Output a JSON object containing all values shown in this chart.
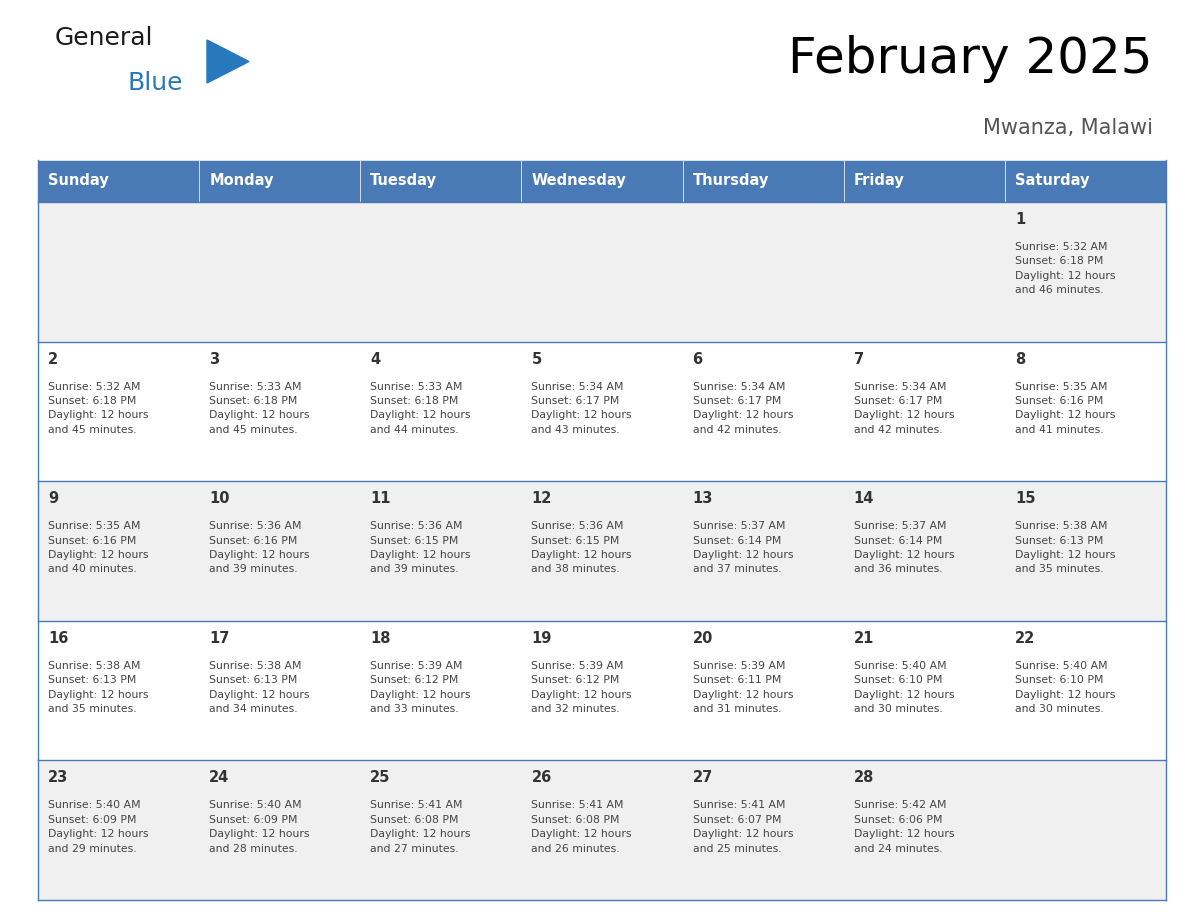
{
  "title": "February 2025",
  "subtitle": "Mwanza, Malawi",
  "days_of_week": [
    "Sunday",
    "Monday",
    "Tuesday",
    "Wednesday",
    "Thursday",
    "Friday",
    "Saturday"
  ],
  "header_bg": "#4a7ab5",
  "header_text": "#ffffff",
  "cell_bg_light": "#f0f0f0",
  "cell_bg_white": "#ffffff",
  "border_color": "#4a7ab5",
  "text_color": "#444444",
  "day_num_color": "#333333",
  "logo_general_color": "#1a1a1a",
  "logo_blue_color": "#2878be",
  "logo_triangle_color": "#2878be",
  "weeks": [
    [
      {
        "day": null,
        "info": null
      },
      {
        "day": null,
        "info": null
      },
      {
        "day": null,
        "info": null
      },
      {
        "day": null,
        "info": null
      },
      {
        "day": null,
        "info": null
      },
      {
        "day": null,
        "info": null
      },
      {
        "day": 1,
        "info": "Sunrise: 5:32 AM\nSunset: 6:18 PM\nDaylight: 12 hours\nand 46 minutes."
      }
    ],
    [
      {
        "day": 2,
        "info": "Sunrise: 5:32 AM\nSunset: 6:18 PM\nDaylight: 12 hours\nand 45 minutes."
      },
      {
        "day": 3,
        "info": "Sunrise: 5:33 AM\nSunset: 6:18 PM\nDaylight: 12 hours\nand 45 minutes."
      },
      {
        "day": 4,
        "info": "Sunrise: 5:33 AM\nSunset: 6:18 PM\nDaylight: 12 hours\nand 44 minutes."
      },
      {
        "day": 5,
        "info": "Sunrise: 5:34 AM\nSunset: 6:17 PM\nDaylight: 12 hours\nand 43 minutes."
      },
      {
        "day": 6,
        "info": "Sunrise: 5:34 AM\nSunset: 6:17 PM\nDaylight: 12 hours\nand 42 minutes."
      },
      {
        "day": 7,
        "info": "Sunrise: 5:34 AM\nSunset: 6:17 PM\nDaylight: 12 hours\nand 42 minutes."
      },
      {
        "day": 8,
        "info": "Sunrise: 5:35 AM\nSunset: 6:16 PM\nDaylight: 12 hours\nand 41 minutes."
      }
    ],
    [
      {
        "day": 9,
        "info": "Sunrise: 5:35 AM\nSunset: 6:16 PM\nDaylight: 12 hours\nand 40 minutes."
      },
      {
        "day": 10,
        "info": "Sunrise: 5:36 AM\nSunset: 6:16 PM\nDaylight: 12 hours\nand 39 minutes."
      },
      {
        "day": 11,
        "info": "Sunrise: 5:36 AM\nSunset: 6:15 PM\nDaylight: 12 hours\nand 39 minutes."
      },
      {
        "day": 12,
        "info": "Sunrise: 5:36 AM\nSunset: 6:15 PM\nDaylight: 12 hours\nand 38 minutes."
      },
      {
        "day": 13,
        "info": "Sunrise: 5:37 AM\nSunset: 6:14 PM\nDaylight: 12 hours\nand 37 minutes."
      },
      {
        "day": 14,
        "info": "Sunrise: 5:37 AM\nSunset: 6:14 PM\nDaylight: 12 hours\nand 36 minutes."
      },
      {
        "day": 15,
        "info": "Sunrise: 5:38 AM\nSunset: 6:13 PM\nDaylight: 12 hours\nand 35 minutes."
      }
    ],
    [
      {
        "day": 16,
        "info": "Sunrise: 5:38 AM\nSunset: 6:13 PM\nDaylight: 12 hours\nand 35 minutes."
      },
      {
        "day": 17,
        "info": "Sunrise: 5:38 AM\nSunset: 6:13 PM\nDaylight: 12 hours\nand 34 minutes."
      },
      {
        "day": 18,
        "info": "Sunrise: 5:39 AM\nSunset: 6:12 PM\nDaylight: 12 hours\nand 33 minutes."
      },
      {
        "day": 19,
        "info": "Sunrise: 5:39 AM\nSunset: 6:12 PM\nDaylight: 12 hours\nand 32 minutes."
      },
      {
        "day": 20,
        "info": "Sunrise: 5:39 AM\nSunset: 6:11 PM\nDaylight: 12 hours\nand 31 minutes."
      },
      {
        "day": 21,
        "info": "Sunrise: 5:40 AM\nSunset: 6:10 PM\nDaylight: 12 hours\nand 30 minutes."
      },
      {
        "day": 22,
        "info": "Sunrise: 5:40 AM\nSunset: 6:10 PM\nDaylight: 12 hours\nand 30 minutes."
      }
    ],
    [
      {
        "day": 23,
        "info": "Sunrise: 5:40 AM\nSunset: 6:09 PM\nDaylight: 12 hours\nand 29 minutes."
      },
      {
        "day": 24,
        "info": "Sunrise: 5:40 AM\nSunset: 6:09 PM\nDaylight: 12 hours\nand 28 minutes."
      },
      {
        "day": 25,
        "info": "Sunrise: 5:41 AM\nSunset: 6:08 PM\nDaylight: 12 hours\nand 27 minutes."
      },
      {
        "day": 26,
        "info": "Sunrise: 5:41 AM\nSunset: 6:08 PM\nDaylight: 12 hours\nand 26 minutes."
      },
      {
        "day": 27,
        "info": "Sunrise: 5:41 AM\nSunset: 6:07 PM\nDaylight: 12 hours\nand 25 minutes."
      },
      {
        "day": 28,
        "info": "Sunrise: 5:42 AM\nSunset: 6:06 PM\nDaylight: 12 hours\nand 24 minutes."
      },
      {
        "day": null,
        "info": null
      }
    ]
  ]
}
